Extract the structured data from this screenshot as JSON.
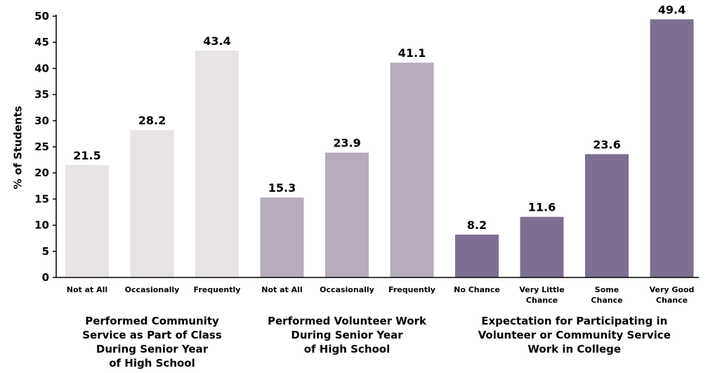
{
  "chart_data": {
    "type": "bar",
    "ylabel": "% of Students",
    "ylim": [
      0,
      50
    ],
    "yticks": [
      0,
      5,
      10,
      15,
      20,
      25,
      30,
      35,
      40,
      45,
      50
    ],
    "groups": [
      {
        "label_lines": [
          "Performed Community",
          "Service as Part of Class",
          "During Senior Year",
          "of High School"
        ],
        "color": "#e8e3e6",
        "categories": [
          "Not at All",
          "Occasionally",
          "Frequently"
        ],
        "values": [
          21.5,
          28.2,
          43.4
        ]
      },
      {
        "label_lines": [
          "Performed Volunteer Work",
          "During Senior Year",
          "of High School"
        ],
        "color": "#b8abbe",
        "categories": [
          "Not at All",
          "Occasionally",
          "Frequently"
        ],
        "values": [
          15.3,
          23.9,
          41.1
        ]
      },
      {
        "label_lines": [
          "Expectation for Participating in",
          "Volunteer or Community Service",
          "Work in College"
        ],
        "color": "#7e6f92",
        "categories": [
          "No Chance",
          "Very Little Chance",
          "Some Chance",
          "Very Good Chance"
        ],
        "values": [
          8.2,
          11.6,
          23.6,
          49.4
        ]
      }
    ]
  }
}
